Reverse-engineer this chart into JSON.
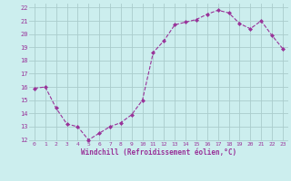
{
  "x": [
    0,
    1,
    2,
    3,
    4,
    5,
    6,
    7,
    8,
    9,
    10,
    11,
    12,
    13,
    14,
    15,
    16,
    17,
    18,
    19,
    20,
    21,
    22,
    23
  ],
  "y": [
    15.9,
    16.0,
    14.4,
    13.2,
    13.0,
    12.0,
    12.5,
    13.0,
    13.3,
    13.9,
    15.0,
    18.6,
    19.5,
    20.7,
    20.9,
    21.1,
    21.5,
    21.8,
    21.6,
    20.8,
    20.4,
    21.0,
    19.9,
    18.9
  ],
  "line_color": "#993399",
  "marker_color": "#993399",
  "bg_color": "#cceeee",
  "grid_color": "#aacccc",
  "xlabel": "Windchill (Refroidissement éolien,°C)",
  "xlabel_color": "#993399",
  "tick_color": "#993399",
  "ylim": [
    12,
    22
  ],
  "xlim": [
    -0.5,
    23.5
  ],
  "yticks": [
    12,
    13,
    14,
    15,
    16,
    17,
    18,
    19,
    20,
    21,
    22
  ],
  "xticks": [
    0,
    1,
    2,
    3,
    4,
    5,
    6,
    7,
    8,
    9,
    10,
    11,
    12,
    13,
    14,
    15,
    16,
    17,
    18,
    19,
    20,
    21,
    22,
    23
  ]
}
